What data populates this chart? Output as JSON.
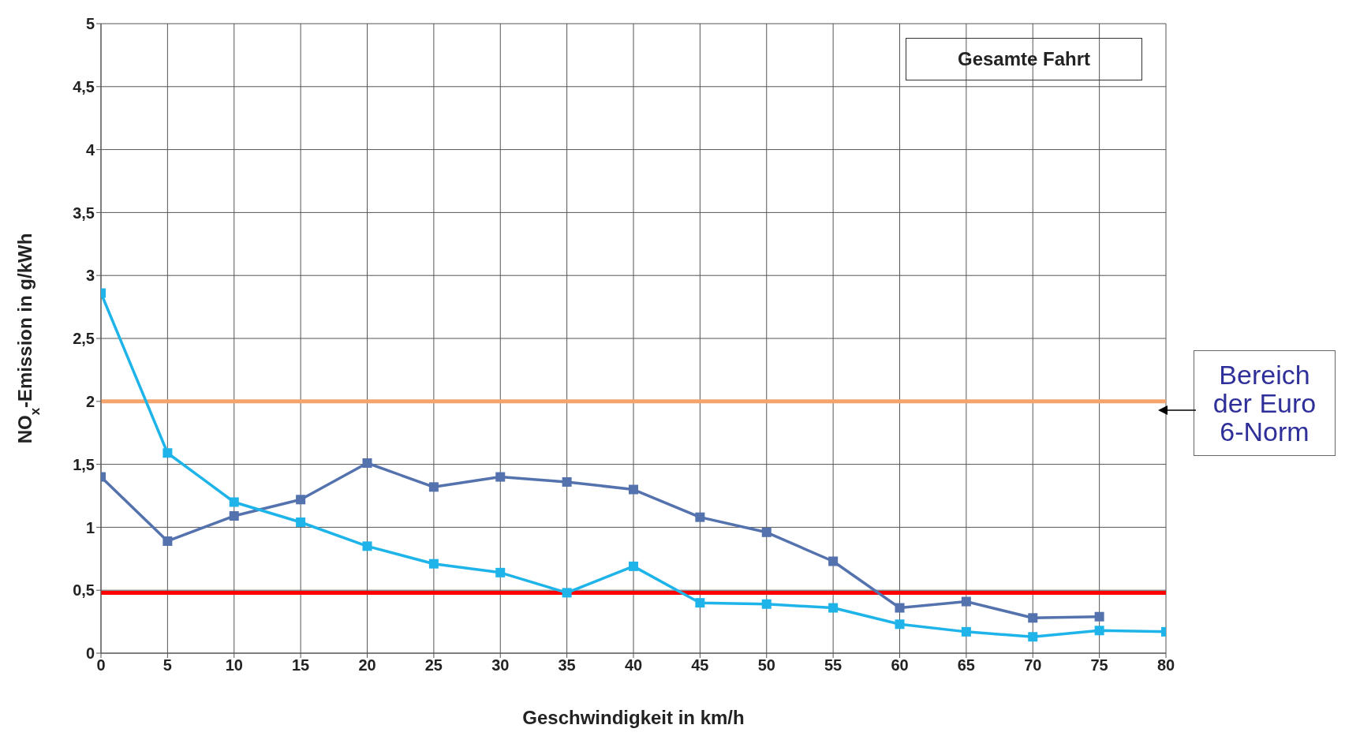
{
  "chart_data": {
    "type": "line",
    "title": "Gesamte Fahrt",
    "xlabel": "Geschwindigkeit in km/h",
    "ylabel": "NO$_{x}$-Emission in g/kWh",
    "x": [
      0,
      5,
      10,
      15,
      20,
      25,
      30,
      35,
      40,
      45,
      50,
      55,
      60,
      65,
      70,
      75,
      80
    ],
    "series": [
      {
        "color": "#5472ad",
        "values": [
          1.4,
          0.89,
          1.09,
          1.22,
          1.51,
          1.32,
          1.4,
          1.36,
          1.3,
          1.08,
          0.96,
          0.73,
          0.36,
          0.41,
          0.28,
          0.29,
          null
        ]
      },
      {
        "color": "#1fb4e9",
        "values": [
          2.86,
          1.59,
          1.2,
          1.04,
          0.85,
          0.71,
          0.64,
          0.48,
          0.69,
          0.4,
          0.39,
          0.36,
          0.23,
          0.17,
          0.13,
          0.18,
          0.17
        ]
      }
    ],
    "xlim": [
      0,
      80
    ],
    "xticks": [
      0,
      5,
      10,
      15,
      20,
      25,
      30,
      35,
      40,
      45,
      50,
      55,
      60,
      65,
      70,
      75,
      80
    ],
    "ylim": [
      0,
      5
    ],
    "yticks": [
      0,
      {
        "value": 0.5,
        "label": "0,5"
      },
      1,
      {
        "value": 1.5,
        "label": "1,5"
      },
      2,
      {
        "value": 2.5,
        "label": "2,5"
      },
      3,
      {
        "value": 3.5,
        "label": "3,5"
      },
      4,
      {
        "value": 4.5,
        "label": "4,5"
      },
      5
    ],
    "ref_lines": [
      {
        "axis": "y",
        "value": 2,
        "color": "#f4a46c"
      },
      {
        "axis": "y",
        "value": 0.48,
        "color": "#ff0000"
      }
    ],
    "annotations": [
      "Bereich der Euro 6-Norm"
    ],
    "grid": true,
    "legend": false,
    "marker": "square",
    "line_style": "solid"
  }
}
